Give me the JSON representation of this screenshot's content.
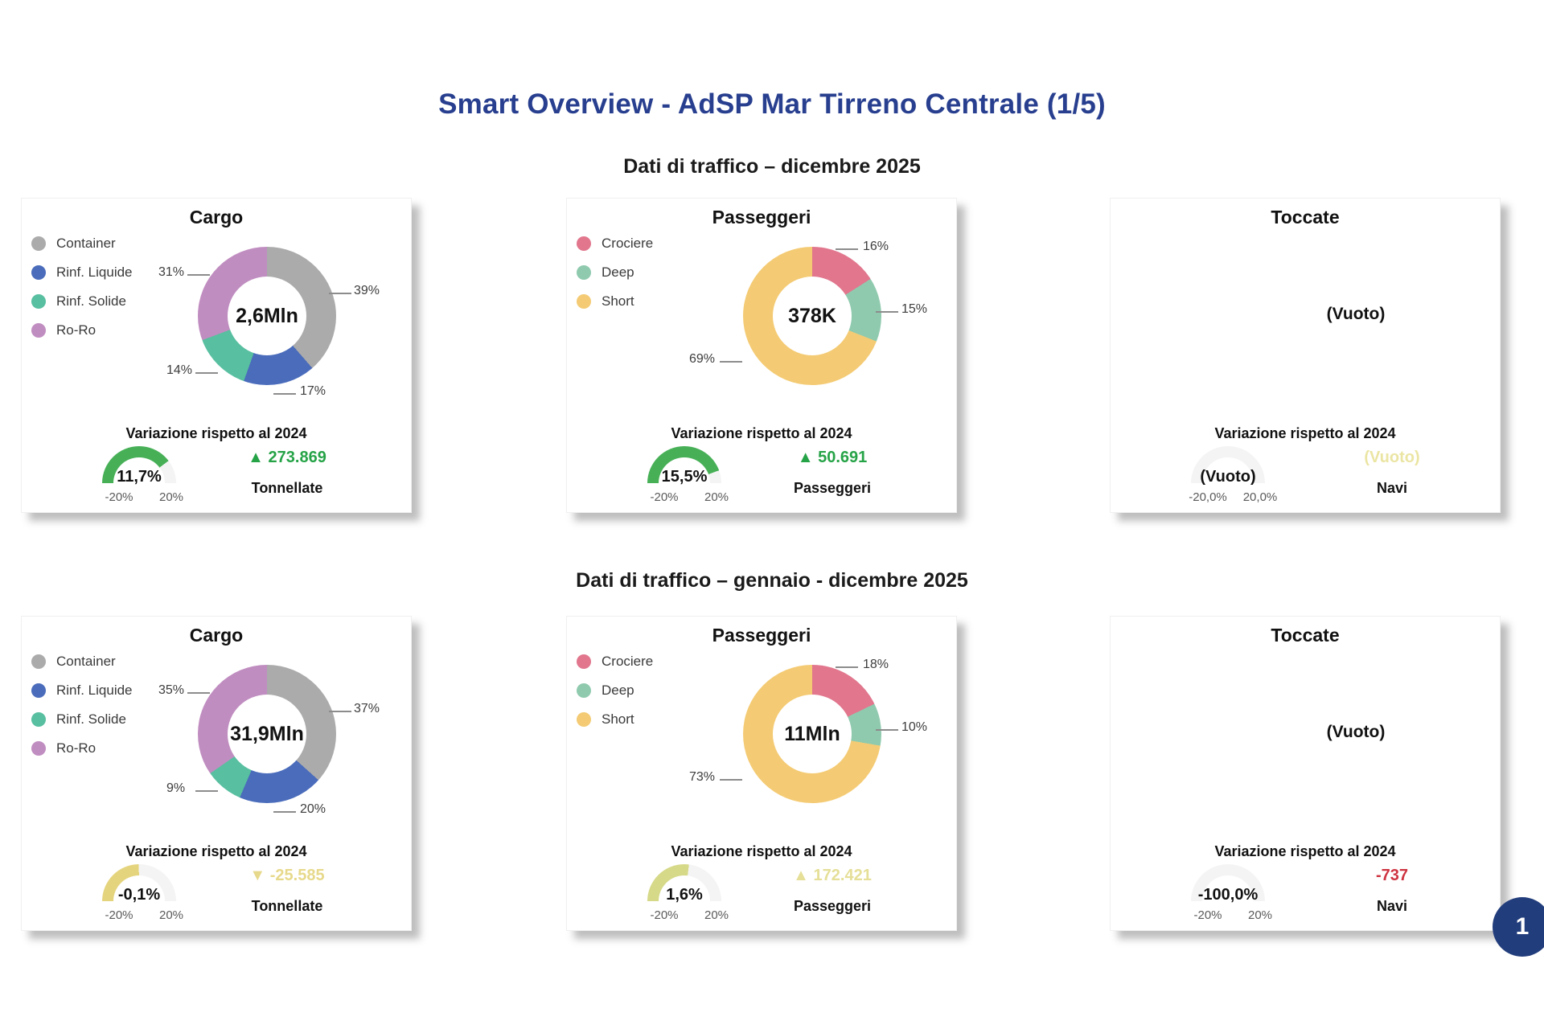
{
  "page": {
    "title": "Smart Overview - AdSP Mar Tirreno Centrale (1/5)",
    "title_color": "#283f8f",
    "section1_title": "Dati di traffico – dicembre 2025",
    "section2_title": "Dati di traffico – gennaio - dicembre 2025",
    "page_number": "1"
  },
  "cards": [
    {
      "title": "Cargo",
      "legend": [
        {
          "label": "Container",
          "color": "#ababab"
        },
        {
          "label": "Rinf. Liquide",
          "color": "#4a6cbb"
        },
        {
          "label": "Rinf. Solide",
          "color": "#58bfa0"
        },
        {
          "label": "Ro-Ro",
          "color": "#c08dc0"
        }
      ],
      "donut": {
        "center_value": "2,6Mln",
        "segments": [
          {
            "name": "Container",
            "pct": 39,
            "color": "#ababab"
          },
          {
            "name": "Rinf. Liquide",
            "pct": 17,
            "color": "#4a6cbb"
          },
          {
            "name": "Rinf. Solide",
            "pct": 14,
            "color": "#58bfa0"
          },
          {
            "name": "Ro-Ro",
            "pct": 31,
            "color": "#c08dc0"
          }
        ],
        "labels": [
          "39%",
          "17%",
          "14%",
          "31%"
        ]
      },
      "variation": {
        "heading": "Variazione rispetto al 2024",
        "gauge": {
          "value": "11,7%",
          "min_label": "-20%",
          "max_label": "20%",
          "fill_deg": 142.7,
          "fill_color": "#47b057",
          "track_color": "#f4f4f4"
        },
        "delta": {
          "text": "▲ 273.869",
          "color": "#26a347"
        },
        "unit": "Tonnellate"
      }
    },
    {
      "title": "Passeggeri",
      "legend": [
        {
          "label": "Crociere",
          "color": "#e1768d"
        },
        {
          "label": "Deep",
          "color": "#8fcaae"
        },
        {
          "label": "Short",
          "color": "#f4cb74"
        }
      ],
      "donut": {
        "center_value": "378K",
        "segments": [
          {
            "name": "Crociere",
            "pct": 16,
            "color": "#e1768d"
          },
          {
            "name": "Deep",
            "pct": 15,
            "color": "#8fcaae"
          },
          {
            "name": "Short",
            "pct": 69,
            "color": "#f4cb74"
          }
        ],
        "labels": [
          "16%",
          "15%",
          "69%"
        ]
      },
      "variation": {
        "heading": "Variazione rispetto al 2024",
        "gauge": {
          "value": "15,5%",
          "min_label": "-20%",
          "max_label": "20%",
          "fill_deg": 159.8,
          "fill_color": "#47b057",
          "track_color": "#f4f4f4"
        },
        "delta": {
          "text": "▲ 50.691",
          "color": "#26a347"
        },
        "unit": "Passeggeri"
      }
    },
    {
      "title": "Toccate",
      "empty_label": "(Vuoto)",
      "variation": {
        "heading": "Variazione rispetto al 2024",
        "gauge": {
          "value": "(Vuoto)",
          "min_label": "-20,0%",
          "max_label": "20,0%",
          "fill_deg": 0,
          "fill_color": "#f4f4f4",
          "track_color": "#f4f4f4"
        },
        "delta": {
          "text": "(Vuoto)",
          "color": "#ebe5a3"
        },
        "unit": "Navi"
      }
    },
    {
      "title": "Cargo",
      "legend": [
        {
          "label": "Container",
          "color": "#ababab"
        },
        {
          "label": "Rinf. Liquide",
          "color": "#4a6cbb"
        },
        {
          "label": "Rinf. Solide",
          "color": "#58bfa0"
        },
        {
          "label": "Ro-Ro",
          "color": "#c08dc0"
        }
      ],
      "donut": {
        "center_value": "31,9Mln",
        "segments": [
          {
            "name": "Container",
            "pct": 37,
            "color": "#ababab"
          },
          {
            "name": "Rinf. Liquide",
            "pct": 20,
            "color": "#4a6cbb"
          },
          {
            "name": "Rinf. Solide",
            "pct": 9,
            "color": "#58bfa0"
          },
          {
            "name": "Ro-Ro",
            "pct": 35,
            "color": "#c08dc0"
          }
        ],
        "labels": [
          "37%",
          "20%",
          "9%",
          "35%"
        ]
      },
      "variation": {
        "heading": "Variazione rispetto al 2024",
        "gauge": {
          "value": "-0,1%",
          "min_label": "-20%",
          "max_label": "20%",
          "fill_deg": 89.6,
          "fill_color": "#e5d47e",
          "track_color": "#f4f4f4"
        },
        "delta": {
          "text": "▼ -25.585",
          "color": "#e7d98b"
        },
        "unit": "Tonnellate"
      }
    },
    {
      "title": "Passeggeri",
      "legend": [
        {
          "label": "Crociere",
          "color": "#e1768d"
        },
        {
          "label": "Deep",
          "color": "#8fcaae"
        },
        {
          "label": "Short",
          "color": "#f4cb74"
        }
      ],
      "donut": {
        "center_value": "11Mln",
        "segments": [
          {
            "name": "Crociere",
            "pct": 18,
            "color": "#e1768d"
          },
          {
            "name": "Deep",
            "pct": 10,
            "color": "#8fcaae"
          },
          {
            "name": "Short",
            "pct": 73,
            "color": "#f4cb74"
          }
        ],
        "labels": [
          "18%",
          "10%",
          "73%"
        ]
      },
      "variation": {
        "heading": "Variazione rispetto al 2024",
        "gauge": {
          "value": "1,6%",
          "min_label": "-20%",
          "max_label": "20%",
          "fill_deg": 97.2,
          "fill_color": "#d6d988",
          "track_color": "#f4f4f4"
        },
        "delta": {
          "text": "▲ 172.421",
          "color": "#e5df97"
        },
        "unit": "Passeggeri"
      }
    },
    {
      "title": "Toccate",
      "empty_label": "(Vuoto)",
      "variation": {
        "heading": "Variazione rispetto al 2024",
        "gauge": {
          "value": "-100,0%",
          "min_label": "-20%",
          "max_label": "20%",
          "fill_deg": 0,
          "fill_color": "#f4f4f4",
          "track_color": "#f4f4f4"
        },
        "delta": {
          "text": "-737",
          "color": "#ce3340"
        },
        "unit": "Navi"
      }
    }
  ],
  "chart_data": [
    {
      "type": "pie",
      "title": "Cargo — Dati di traffico – dicembre 2025",
      "categories": [
        "Container",
        "Rinf. Liquide",
        "Rinf. Solide",
        "Ro-Ro"
      ],
      "values": [
        39,
        17,
        14,
        31
      ],
      "center_label": "2,6Mln",
      "legend_position": "left"
    },
    {
      "type": "pie",
      "title": "Passeggeri — Dati di traffico – dicembre 2025",
      "categories": [
        "Crociere",
        "Deep",
        "Short"
      ],
      "values": [
        16,
        15,
        69
      ],
      "center_label": "378K",
      "legend_position": "left"
    },
    {
      "type": "gauge",
      "title": "Cargo — Variazione rispetto al 2024 (dicembre 2025)",
      "value": 11.7,
      "range": [
        -20,
        20
      ],
      "delta": "▲ 273.869 Tonnellate"
    },
    {
      "type": "gauge",
      "title": "Passeggeri — Variazione rispetto al 2024 (dicembre 2025)",
      "value": 15.5,
      "range": [
        -20,
        20
      ],
      "delta": "▲ 50.691 Passeggeri"
    },
    {
      "type": "gauge",
      "title": "Toccate — Variazione rispetto al 2024 (dicembre 2025)",
      "value": null,
      "range": [
        -20,
        20
      ],
      "delta": "(Vuoto) Navi",
      "note": "(Vuoto)"
    },
    {
      "type": "pie",
      "title": "Cargo — Dati di traffico – gennaio - dicembre 2025",
      "categories": [
        "Container",
        "Rinf. Liquide",
        "Rinf. Solide",
        "Ro-Ro"
      ],
      "values": [
        37,
        20,
        9,
        35
      ],
      "center_label": "31,9Mln",
      "legend_position": "left"
    },
    {
      "type": "pie",
      "title": "Passeggeri — Dati di traffico – gennaio - dicembre 2025",
      "categories": [
        "Crociere",
        "Deep",
        "Short"
      ],
      "values": [
        18,
        10,
        73
      ],
      "center_label": "11Mln",
      "legend_position": "left"
    },
    {
      "type": "gauge",
      "title": "Cargo — Variazione rispetto al 2024 (gennaio - dicembre 2025)",
      "value": -0.1,
      "range": [
        -20,
        20
      ],
      "delta": "▼ -25.585 Tonnellate"
    },
    {
      "type": "gauge",
      "title": "Passeggeri — Variazione rispetto al 2024 (gennaio - dicembre 2025)",
      "value": 1.6,
      "range": [
        -20,
        20
      ],
      "delta": "▲ 172.421 Passeggeri"
    },
    {
      "type": "gauge",
      "title": "Toccate — Variazione rispetto al 2024 (gennaio - dicembre 2025)",
      "value": -100.0,
      "range": [
        -20,
        20
      ],
      "delta": "-737 Navi"
    }
  ]
}
